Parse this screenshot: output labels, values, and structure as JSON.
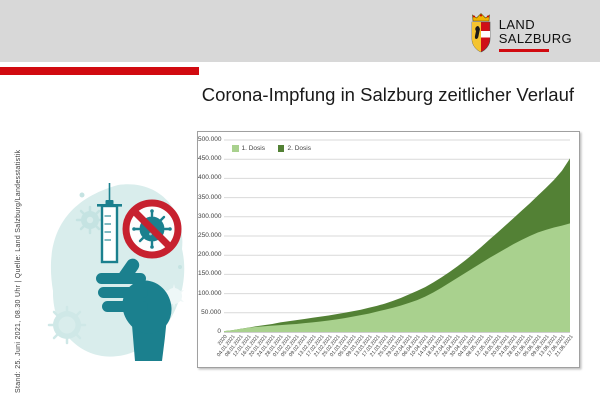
{
  "page": {
    "background": "#ffffff",
    "band_gray": "#d8d8d8",
    "accent_red": "#d10a10"
  },
  "logo": {
    "line1": "LAND",
    "line2": "SALZBURG"
  },
  "title": "Corona-Impfung in Salzburg zeitlicher Verlauf",
  "source_note": "Stand: 25. Juni 2021, 08.30 Uhr | Quelle: Land Salzburg/Landesstatistik",
  "illustration": {
    "name": "hand-syringe-no-virus-illustration",
    "teal": "#1b808e",
    "light_teal": "#d9edec",
    "sign_red": "#c7212f"
  },
  "chart_data": {
    "type": "area",
    "stacked": true,
    "title": "",
    "xlabel": "",
    "ylabel": "",
    "grid": true,
    "legend_position": "top-left",
    "legend": [
      "1. Dosis",
      "2. Dosis"
    ],
    "ylim": [
      0,
      500000
    ],
    "ytick_step": 50000,
    "ytick_labels": [
      "500.000",
      "450.000",
      "400.000",
      "350.000",
      "300.000",
      "250.000",
      "200.000",
      "150.000",
      "100.000",
      "50.000",
      "0"
    ],
    "x": [
      "2020",
      "04.01.2021",
      "08.01.2021",
      "12.01.2021",
      "16.01.2021",
      "20.01.2021",
      "24.01.2021",
      "28.01.2021",
      "01.02.2021",
      "05.02.2021",
      "09.02.2021",
      "13.02.2021",
      "17.02.2021",
      "21.02.2021",
      "25.02.2021",
      "01.03.2021",
      "05.03.2021",
      "09.03.2021",
      "13.03.2021",
      "17.03.2021",
      "21.03.2021",
      "25.03.2021",
      "29.03.2021",
      "02.04.2021",
      "06.04.2021",
      "10.04.2021",
      "14.04.2021",
      "18.04.2021",
      "22.04.2021",
      "26.04.2021",
      "30.04.2021",
      "04.05.2021",
      "08.05.2021",
      "12.05.2021",
      "16.05.2021",
      "20.05.2021",
      "24.05.2021",
      "28.05.2021",
      "01.06.2021",
      "05.06.2021",
      "09.06.2021",
      "13.06.2021",
      "17.06.2021",
      "21.06.2021"
    ],
    "series": [
      {
        "name": "1. Dosis",
        "color": "#a9d18e",
        "values": [
          2400,
          4500,
          8000,
          11000,
          13500,
          15000,
          16500,
          18000,
          19500,
          21000,
          23000,
          25000,
          27500,
          30000,
          33000,
          36000,
          40000,
          44000,
          48000,
          53000,
          58000,
          63000,
          69000,
          76000,
          83000,
          92000,
          103000,
          115000,
          128000,
          141000,
          154000,
          167000,
          180000,
          193000,
          205000,
          217000,
          229000,
          240000,
          250000,
          259000,
          266000,
          272000,
          277000,
          283000
        ]
      },
      {
        "name": "2. Dosis",
        "color": "#538135",
        "values": [
          0,
          0,
          200,
          500,
          1500,
          3000,
          4500,
          7000,
          8500,
          10000,
          11000,
          12000,
          12500,
          13000,
          13500,
          14000,
          14000,
          14000,
          15000,
          15000,
          16000,
          18000,
          20000,
          22000,
          24000,
          25000,
          26000,
          27000,
          28000,
          30000,
          33000,
          37000,
          42000,
          48000,
          54000,
          61000,
          68000,
          76000,
          85000,
          96000,
          109000,
          124000,
          143000,
          169000
        ]
      }
    ]
  }
}
